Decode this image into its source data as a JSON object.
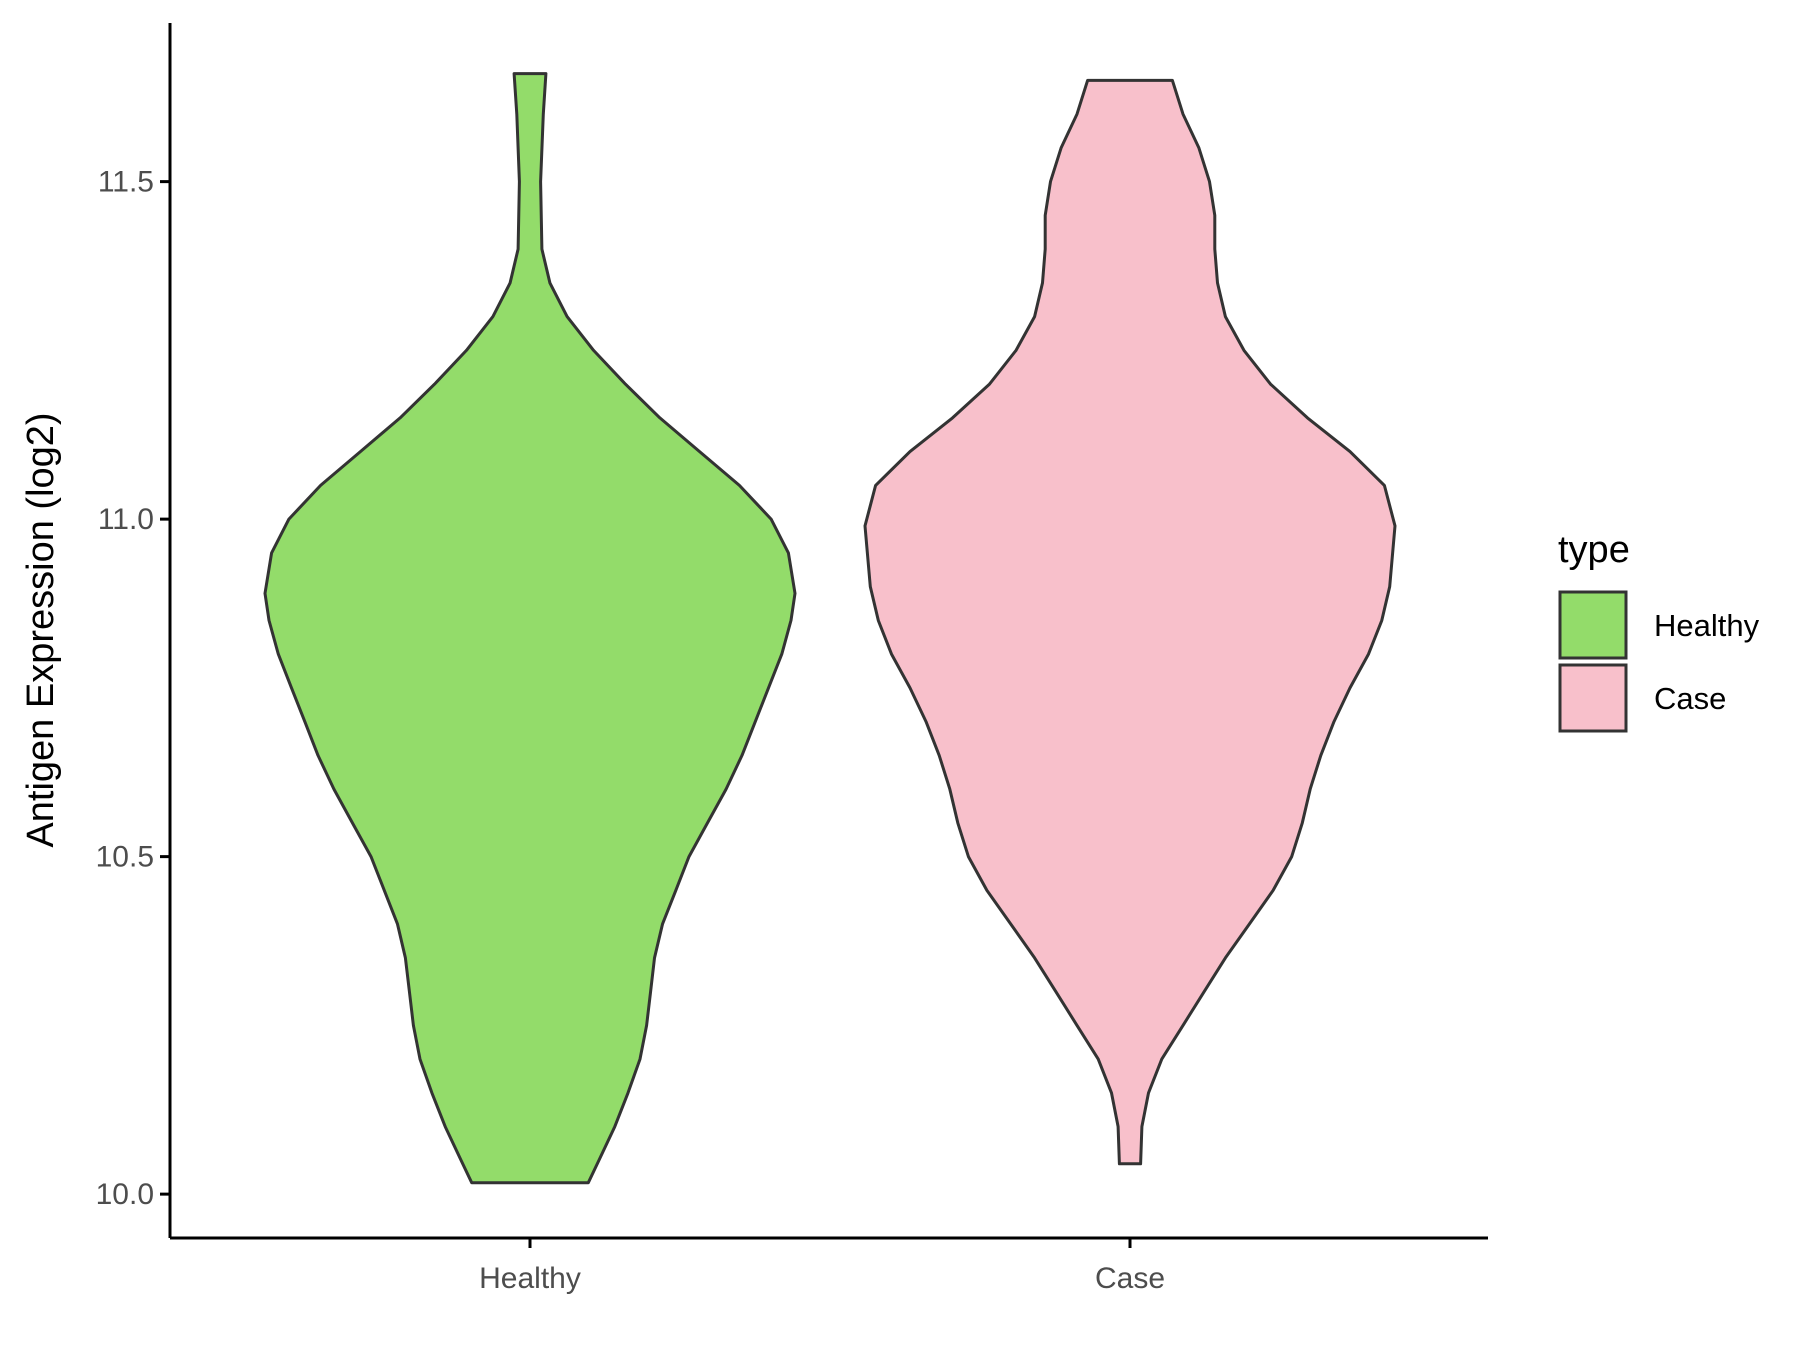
{
  "chart_data": {
    "type": "violin",
    "title": "",
    "xlabel": "",
    "ylabel": "Antigen Expression (log2)",
    "ylim": [
      9.935,
      11.735
    ],
    "yticks": [
      10.0,
      10.5,
      11.0,
      11.5
    ],
    "ytick_labels": [
      "10.0",
      "10.5",
      "11.0",
      "11.5"
    ],
    "categories": [
      "Healthy",
      "Case"
    ],
    "legend": {
      "title": "type",
      "position": "right",
      "entries": [
        "Healthy",
        "Case"
      ]
    },
    "colors": {
      "Healthy": "#93dc6a",
      "Case": "#f8c0cb",
      "outline": "#333333",
      "axis": "#000000"
    },
    "grid": false,
    "series": [
      {
        "category": "Healthy",
        "min": 10.017,
        "max": 11.66,
        "density_profile": [
          [
            10.017,
            0.22
          ],
          [
            10.05,
            0.26
          ],
          [
            10.1,
            0.32
          ],
          [
            10.15,
            0.37
          ],
          [
            10.2,
            0.415
          ],
          [
            10.25,
            0.44
          ],
          [
            10.3,
            0.455
          ],
          [
            10.35,
            0.47
          ],
          [
            10.4,
            0.5
          ],
          [
            10.45,
            0.55
          ],
          [
            10.5,
            0.6
          ],
          [
            10.55,
            0.67
          ],
          [
            10.6,
            0.74
          ],
          [
            10.65,
            0.8
          ],
          [
            10.7,
            0.85
          ],
          [
            10.75,
            0.9
          ],
          [
            10.8,
            0.95
          ],
          [
            10.85,
            0.985
          ],
          [
            10.89,
            1.0
          ],
          [
            10.95,
            0.975
          ],
          [
            11.0,
            0.91
          ],
          [
            11.05,
            0.79
          ],
          [
            11.1,
            0.64
          ],
          [
            11.15,
            0.49
          ],
          [
            11.2,
            0.36
          ],
          [
            11.25,
            0.24
          ],
          [
            11.3,
            0.14
          ],
          [
            11.35,
            0.075
          ],
          [
            11.4,
            0.045
          ],
          [
            11.5,
            0.04
          ],
          [
            11.6,
            0.05
          ],
          [
            11.66,
            0.06
          ]
        ]
      },
      {
        "category": "Case",
        "min": 10.045,
        "max": 11.65,
        "density_profile": [
          [
            10.045,
            0.04
          ],
          [
            10.1,
            0.045
          ],
          [
            10.15,
            0.07
          ],
          [
            10.2,
            0.12
          ],
          [
            10.25,
            0.2
          ],
          [
            10.3,
            0.28
          ],
          [
            10.35,
            0.36
          ],
          [
            10.4,
            0.45
          ],
          [
            10.45,
            0.54
          ],
          [
            10.5,
            0.61
          ],
          [
            10.55,
            0.65
          ],
          [
            10.6,
            0.68
          ],
          [
            10.65,
            0.72
          ],
          [
            10.7,
            0.77
          ],
          [
            10.75,
            0.83
          ],
          [
            10.8,
            0.9
          ],
          [
            10.85,
            0.95
          ],
          [
            10.9,
            0.98
          ],
          [
            10.99,
            1.0
          ],
          [
            11.05,
            0.96
          ],
          [
            11.1,
            0.83
          ],
          [
            11.15,
            0.67
          ],
          [
            11.2,
            0.53
          ],
          [
            11.25,
            0.43
          ],
          [
            11.3,
            0.36
          ],
          [
            11.35,
            0.33
          ],
          [
            11.4,
            0.32
          ],
          [
            11.45,
            0.32
          ],
          [
            11.5,
            0.3
          ],
          [
            11.55,
            0.26
          ],
          [
            11.6,
            0.2
          ],
          [
            11.65,
            0.16
          ]
        ]
      }
    ]
  }
}
